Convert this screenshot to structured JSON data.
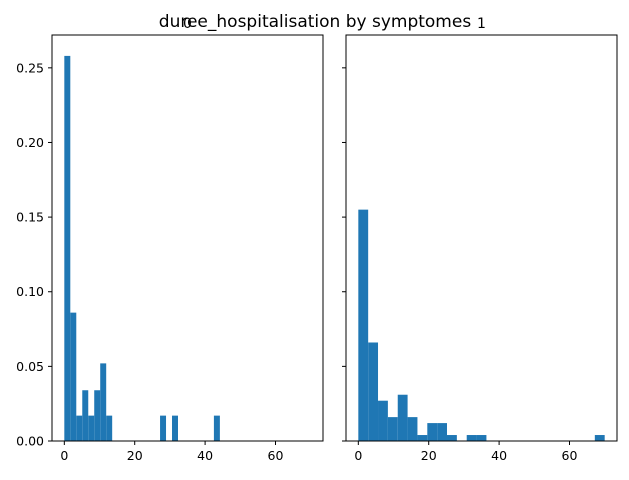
{
  "chart_data": {
    "type": "histogram",
    "suptitle": "duree_hospitalisation by symptomes",
    "sharex": true,
    "sharey": true,
    "ylim": [
      0,
      0.272
    ],
    "xlim": [
      -3.5,
      73.5
    ],
    "xticks": [
      0,
      20,
      40,
      60
    ],
    "yticks": [
      0.0,
      0.05,
      0.1,
      0.15,
      0.2,
      0.25
    ],
    "ytick_labels": [
      "0.00",
      "0.05",
      "0.10",
      "0.15",
      "0.20",
      "0.25"
    ],
    "bar_color": "#1f77b4",
    "panels": [
      {
        "title": "0",
        "bin_width": 1.7,
        "bins": [
          {
            "x": 0.0,
            "height": 0.258
          },
          {
            "x": 1.7,
            "height": 0.086
          },
          {
            "x": 3.4,
            "height": 0.017
          },
          {
            "x": 5.1,
            "height": 0.034
          },
          {
            "x": 6.8,
            "height": 0.017
          },
          {
            "x": 8.5,
            "height": 0.034
          },
          {
            "x": 10.2,
            "height": 0.052
          },
          {
            "x": 11.9,
            "height": 0.017
          },
          {
            "x": 27.2,
            "height": 0.017
          },
          {
            "x": 30.6,
            "height": 0.017
          },
          {
            "x": 42.5,
            "height": 0.017
          }
        ]
      },
      {
        "title": "1",
        "bin_width": 2.8,
        "bins": [
          {
            "x": 0.0,
            "height": 0.155
          },
          {
            "x": 2.8,
            "height": 0.066
          },
          {
            "x": 5.6,
            "height": 0.027
          },
          {
            "x": 8.4,
            "height": 0.016
          },
          {
            "x": 11.2,
            "height": 0.031
          },
          {
            "x": 14.0,
            "height": 0.016
          },
          {
            "x": 16.8,
            "height": 0.004
          },
          {
            "x": 19.6,
            "height": 0.012
          },
          {
            "x": 22.4,
            "height": 0.012
          },
          {
            "x": 25.2,
            "height": 0.004
          },
          {
            "x": 30.8,
            "height": 0.004
          },
          {
            "x": 33.6,
            "height": 0.004
          },
          {
            "x": 67.2,
            "height": 0.004
          }
        ]
      }
    ]
  }
}
